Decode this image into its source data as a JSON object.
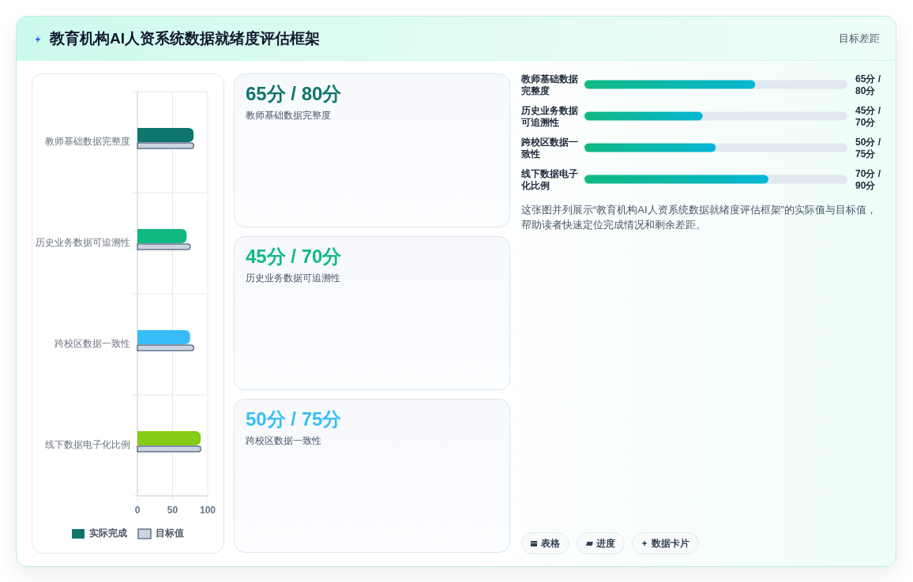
{
  "chart_data": [
    {
      "type": "bar",
      "orientation": "horizontal",
      "title": "教育机构AI人资系统数据就绪度评估框架",
      "categories": [
        "教师基础数据完整度",
        "历史业务数据可追溯性",
        "跨校区数据一致性",
        "线下数据电子化比例"
      ],
      "series": [
        {
          "name": "实际完成",
          "colors": [
            "#0f766e",
            "#10b981",
            "#38bdf8",
            "#84cc16"
          ],
          "values": [
            80,
            70,
            75,
            90
          ]
        },
        {
          "name": "目标值",
          "color": "#cbd5e1",
          "values": [
            80,
            75,
            80,
            90
          ]
        }
      ],
      "xlim": [
        0,
        100
      ],
      "xticks": [
        0,
        50,
        100
      ],
      "grid": true,
      "legend": "bottom"
    },
    {
      "type": "other",
      "categories": [
        "教师基础数据完整度",
        "历史业务数据可追溯性",
        "跨校区数据一致性"
      ],
      "value_labels": [
        "65分 / 80分",
        "45分 / 70分",
        "50分 / 75分"
      ]
    },
    {
      "type": "bar",
      "orientation": "horizontal",
      "subtitle": "目标差距",
      "categories": [
        "教师基础数据完整度",
        "历史业务数据可追溯性",
        "跨校区数据一致性",
        "线下数据电子化比例"
      ],
      "series": [
        {
          "color": "#10b981",
          "values": [
            65,
            45,
            50,
            70
          ],
          "value_labels": [
            "65分 / 80分",
            "45分 / 70分",
            "50分 / 75分",
            "70分 / 90分"
          ]
        }
      ],
      "xlim": [
        0,
        100
      ],
      "annotations": [
        "这张图并列展示“教育机构AI人资系统数据就绪度评估框架”的实际值与目标值，帮助读者快速定位完成情况和剩余差距。"
      ]
    },
    {
      "type": "other",
      "annotations": [
        "表格",
        "进度",
        "数据卡片"
      ]
    }
  ]
}
